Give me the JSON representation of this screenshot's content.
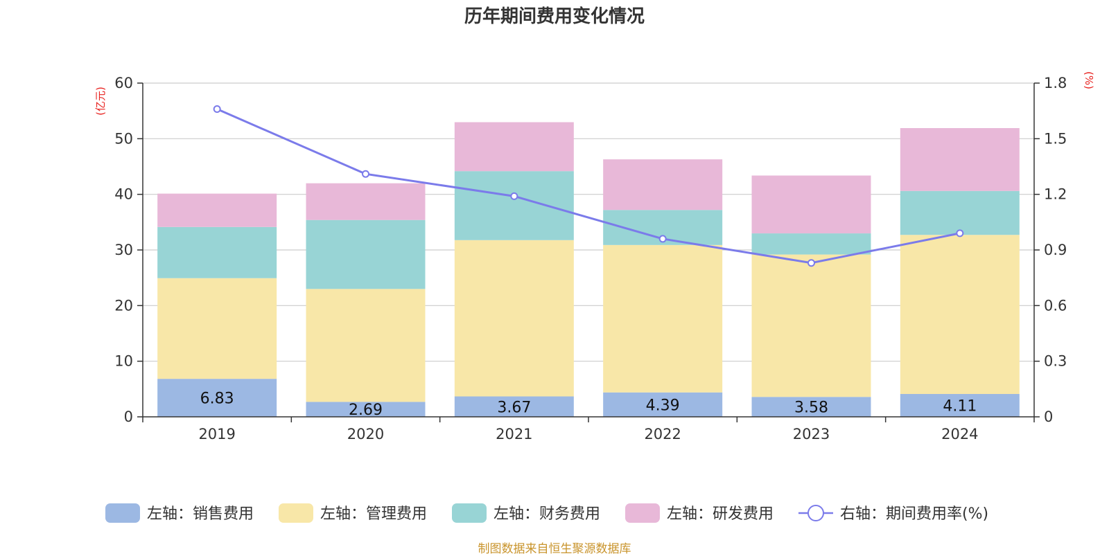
{
  "chart_data": {
    "type": "bar",
    "title": "历年期间费用变化情况",
    "categories": [
      "2019",
      "2020",
      "2021",
      "2022",
      "2023",
      "2024"
    ],
    "left_axis": {
      "unit": "(亿元)",
      "ylim": [
        0,
        60
      ],
      "ticks": [
        "0",
        "10",
        "20",
        "30",
        "40",
        "50",
        "60"
      ]
    },
    "right_axis": {
      "unit": "(%)",
      "ylim": [
        0,
        1.8
      ],
      "ticks": [
        "0",
        "0.3",
        "0.6",
        "0.9",
        "1.2",
        "1.5",
        "1.8"
      ]
    },
    "series": [
      {
        "name": "左轴：销售费用",
        "type": "bar",
        "axis": "left",
        "color": "#9cb8e3",
        "values": [
          6.83,
          2.69,
          3.67,
          4.39,
          3.58,
          4.11
        ],
        "labels": [
          "6.83",
          "2.69",
          "3.67",
          "4.39",
          "3.58",
          "4.11"
        ]
      },
      {
        "name": "左轴：管理费用",
        "type": "bar",
        "axis": "left",
        "color": "#f8e7a8",
        "values": [
          18.1,
          20.3,
          28.1,
          26.5,
          25.6,
          28.6
        ]
      },
      {
        "name": "左轴：财务费用",
        "type": "bar",
        "axis": "left",
        "color": "#98d4d5",
        "values": [
          9.2,
          12.4,
          12.4,
          6.3,
          3.8,
          7.9
        ]
      },
      {
        "name": "左轴：研发费用",
        "type": "bar",
        "axis": "left",
        "color": "#e8b8d8",
        "values": [
          6.0,
          6.6,
          8.8,
          9.1,
          10.4,
          11.3
        ]
      },
      {
        "name": "右轴：期间费用率(%)",
        "type": "line",
        "axis": "right",
        "color": "#7b7bea",
        "values": [
          1.66,
          1.31,
          1.19,
          0.96,
          0.83,
          0.99
        ]
      }
    ],
    "source": "制图数据来自恒生聚源数据库"
  }
}
